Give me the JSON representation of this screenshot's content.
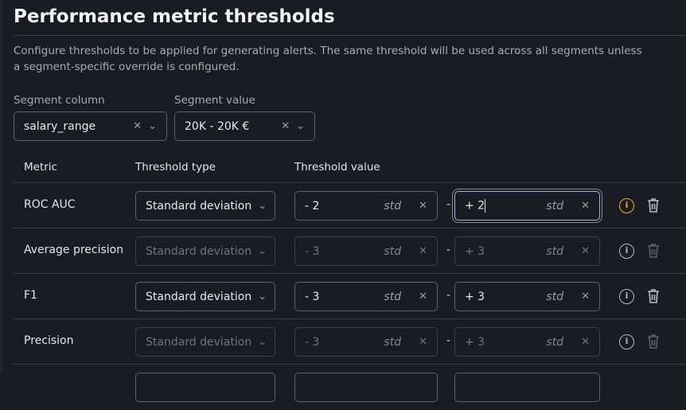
{
  "title": "Performance metric thresholds",
  "description": "Configure thresholds to be applied for generating alerts. The same threshold will be used across all segments unless a segment-specific override is configured.",
  "segment_column": {
    "label": "Segment column",
    "value": "salary_range"
  },
  "segment_value": {
    "label": "Segment value",
    "value": "20K - 20K €"
  },
  "headers": {
    "metric": "Metric",
    "type": "Threshold type",
    "value": "Threshold value"
  },
  "unit": "std",
  "separator": "-",
  "accent_warning": "#f0b400",
  "rows": [
    {
      "metric": "ROC AUC",
      "type": "Standard deviation",
      "min": "- 2",
      "max": "+ 2",
      "enabled": true,
      "focused": "max",
      "info_highlight": true
    },
    {
      "metric": "Average precision",
      "type": "Standard deviation",
      "min": "- 3",
      "max": "+ 3",
      "enabled": false
    },
    {
      "metric": "F1",
      "type": "Standard deviation",
      "min": "- 3",
      "max": "+ 3",
      "enabled": true
    },
    {
      "metric": "Precision",
      "type": "Standard deviation",
      "min": "- 3",
      "max": "+ 3",
      "enabled": false
    }
  ]
}
